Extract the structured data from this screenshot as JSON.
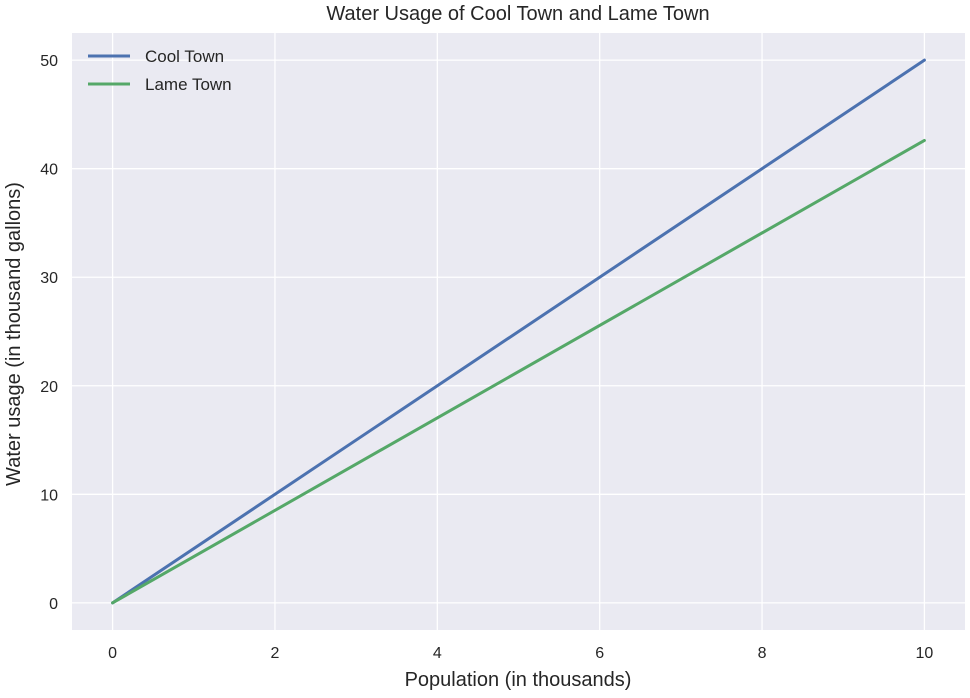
{
  "chart_data": {
    "type": "line",
    "title": "Water Usage of Cool Town and Lame Town",
    "xlabel": "Population (in thousands)",
    "ylabel": "Water usage (in thousand gallons)",
    "xlim": [
      -0.5,
      10.5
    ],
    "ylim": [
      -2.5,
      52.5
    ],
    "xticks": [
      0,
      2,
      4,
      6,
      8,
      10
    ],
    "yticks": [
      0,
      10,
      20,
      30,
      40,
      50
    ],
    "grid": true,
    "legend_position": "upper-left",
    "series": [
      {
        "name": "Cool Town",
        "color": "#4c72b0",
        "x": [
          0,
          10
        ],
        "y": [
          0,
          50
        ]
      },
      {
        "name": "Lame Town",
        "color": "#55a868",
        "x": [
          0,
          10
        ],
        "y": [
          0,
          42.6
        ]
      }
    ]
  }
}
